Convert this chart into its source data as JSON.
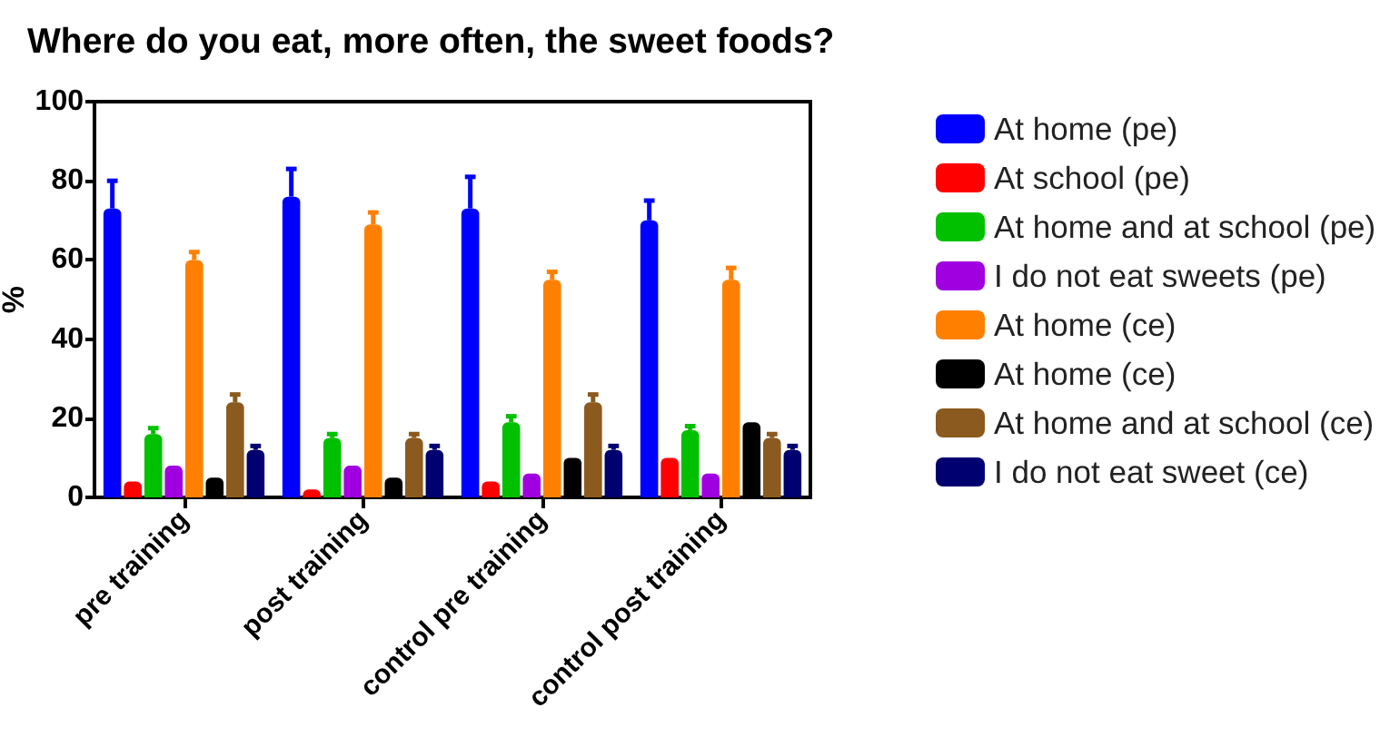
{
  "chart_data": {
    "type": "bar",
    "title": "Where do you eat, more often, the sweet foods?",
    "ylabel": "%",
    "categories": [
      "pre training",
      "post training",
      "control pre training",
      "control post training"
    ],
    "series": [
      {
        "name": "At home (pe)",
        "color": "#0000ff",
        "values": [
          73,
          76,
          73,
          70
        ],
        "errors": [
          [
            73,
            80
          ],
          [
            76,
            83
          ],
          [
            73,
            81
          ],
          [
            70,
            75
          ]
        ]
      },
      {
        "name": "At school (pe)",
        "color": "#ff0000",
        "values": [
          4,
          2,
          4,
          10
        ]
      },
      {
        "name": "At home and at school (pe)",
        "color": "#00c000",
        "values": [
          16,
          15,
          19,
          17
        ],
        "errors": [
          [
            16,
            17.5
          ],
          [
            15,
            16
          ],
          [
            19,
            20.5
          ],
          [
            17,
            18
          ]
        ]
      },
      {
        "name": "I do not eat sweets (pe)",
        "color": "#a000e0",
        "values": [
          8,
          8,
          6,
          6
        ]
      },
      {
        "name": "At home (ce)",
        "color": "#ff8000",
        "values": [
          60,
          69,
          55,
          55
        ],
        "errors": [
          [
            60,
            62
          ],
          [
            69,
            72
          ],
          [
            55,
            57
          ],
          [
            55,
            58
          ]
        ]
      },
      {
        "name": "At home (ce)",
        "color": "#000000",
        "values": [
          5,
          5,
          10,
          19
        ]
      },
      {
        "name": "At home and at school (ce)",
        "color": "#8b5a1e",
        "values": [
          24,
          15,
          24,
          15
        ],
        "errors": [
          [
            24,
            26
          ],
          [
            15,
            16
          ],
          [
            24,
            26
          ],
          [
            15,
            16
          ]
        ]
      },
      {
        "name": "I do not eat sweet (ce)",
        "color": "#000070",
        "values": [
          12,
          12,
          12,
          12
        ],
        "errors": [
          [
            12,
            13
          ],
          [
            12,
            13
          ],
          [
            12,
            13
          ],
          [
            12,
            13
          ]
        ]
      }
    ],
    "ylim": [
      0,
      100
    ],
    "yticks": [
      0,
      20,
      40,
      60,
      80,
      100
    ],
    "grid": false,
    "legend": "right"
  }
}
